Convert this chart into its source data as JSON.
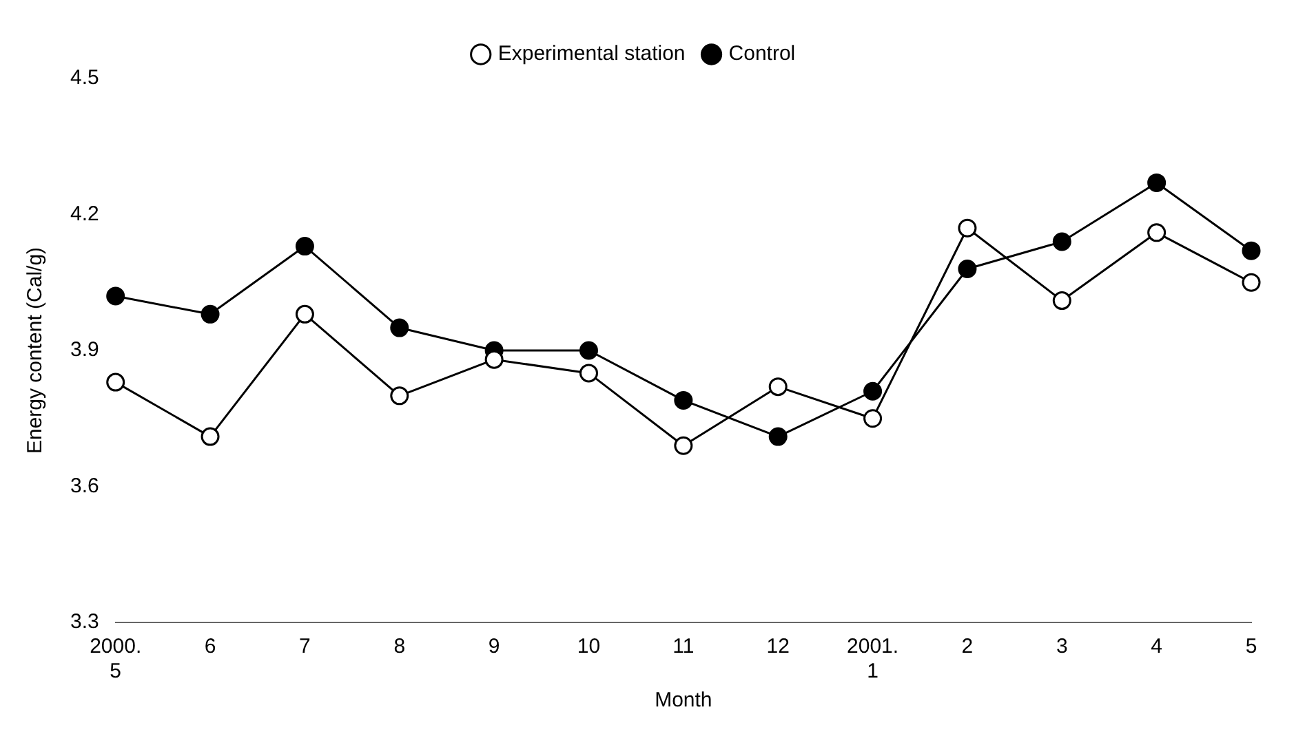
{
  "chart_data": {
    "type": "line",
    "xlabel": "Month",
    "ylabel": "Energy content (Cal/g)",
    "categories": [
      "2000.\n5",
      "6",
      "7",
      "8",
      "9",
      "10",
      "11",
      "12",
      "2001.\n1",
      "2",
      "3",
      "4",
      "5"
    ],
    "ylim": [
      3.3,
      4.5
    ],
    "yticks": [
      3.3,
      3.6,
      3.9,
      4.2,
      4.5
    ],
    "grid": false,
    "legend": "top",
    "marker": "circle",
    "line_style": "solid",
    "series": [
      {
        "name": "Experimental station",
        "color": "#000000",
        "values": [
          3.83,
          3.71,
          3.98,
          3.8,
          3.88,
          3.85,
          3.69,
          3.82,
          3.75,
          4.17,
          4.01,
          4.16,
          4.05
        ]
      },
      {
        "name": "Control",
        "color": "#000000",
        "values": [
          4.02,
          3.98,
          4.13,
          3.95,
          3.9,
          3.9,
          3.79,
          3.71,
          3.81,
          4.08,
          4.14,
          4.27,
          4.12
        ]
      }
    ]
  }
}
